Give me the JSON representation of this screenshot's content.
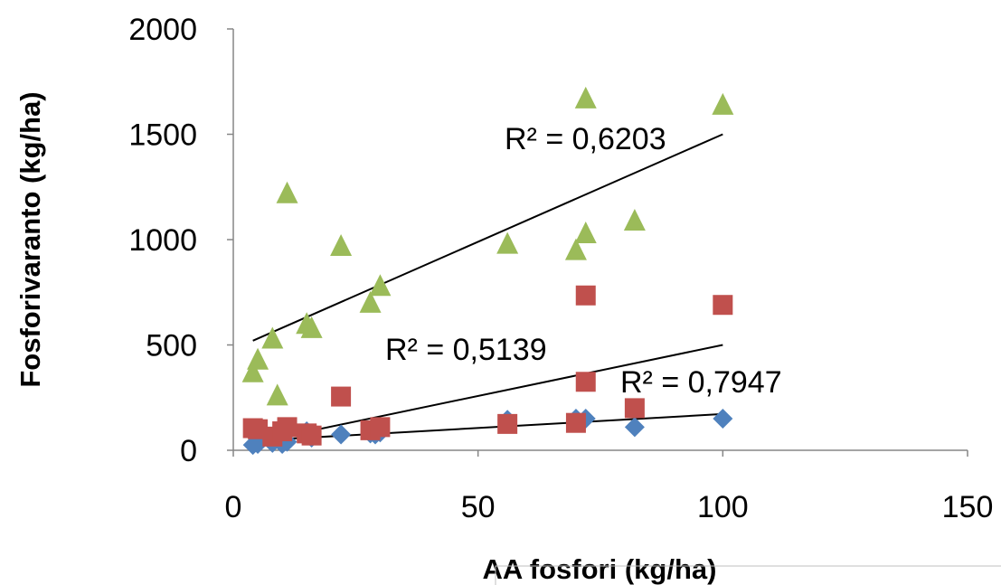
{
  "chart_data": {
    "type": "scatter",
    "xlabel": "AA fosfori (kg/ha)",
    "ylabel": "Fosforivaranto (kg/ha)",
    "xlim": [
      0,
      150
    ],
    "ylim": [
      0,
      2000
    ],
    "xticks": [
      0,
      50,
      100,
      150
    ],
    "yticks": [
      0,
      500,
      1000,
      1500,
      2000
    ],
    "xtick_labels": [
      "0",
      "50",
      "100",
      "150"
    ],
    "ytick_labels": [
      "0",
      "500",
      "1000",
      "1500",
      "2000"
    ],
    "grid": false,
    "legend": "none",
    "series": [
      {
        "marker": "diamond",
        "color": "#4F81BD",
        "x": [
          4,
          5,
          8,
          10,
          11,
          15,
          16,
          22,
          28,
          29,
          30,
          56,
          70,
          72,
          82,
          100
        ],
        "y": [
          25,
          30,
          35,
          30,
          40,
          90,
          60,
          75,
          80,
          75,
          85,
          145,
          150,
          150,
          110,
          150
        ],
        "trendline": {
          "x": [
            4,
            100
          ],
          "y": [
            45,
            172
          ],
          "r2_label": "R² = 0,7947"
        }
      },
      {
        "marker": "square",
        "color": "#C0504D",
        "x": [
          4,
          5,
          8,
          10,
          11,
          15,
          16,
          22,
          28,
          30,
          56,
          70,
          72,
          72,
          82,
          100
        ],
        "y": [
          105,
          100,
          65,
          90,
          110,
          80,
          70,
          255,
          95,
          110,
          125,
          130,
          735,
          325,
          200,
          690
        ],
        "trendline": {
          "x": [
            4,
            100
          ],
          "y": [
            35,
            500
          ],
          "r2_label": "R² = 0,5139"
        }
      },
      {
        "marker": "triangle",
        "color": "#9BBB59",
        "x": [
          4,
          5,
          8,
          9,
          11,
          15,
          16,
          22,
          28,
          30,
          56,
          70,
          72,
          72,
          82,
          100
        ],
        "y": [
          370,
          430,
          530,
          260,
          1220,
          600,
          580,
          970,
          700,
          780,
          980,
          950,
          1030,
          1670,
          1090,
          1640
        ],
        "trendline": {
          "x": [
            4,
            100
          ],
          "y": [
            520,
            1500
          ],
          "r2_label": "R² = 0,6203"
        }
      }
    ]
  }
}
